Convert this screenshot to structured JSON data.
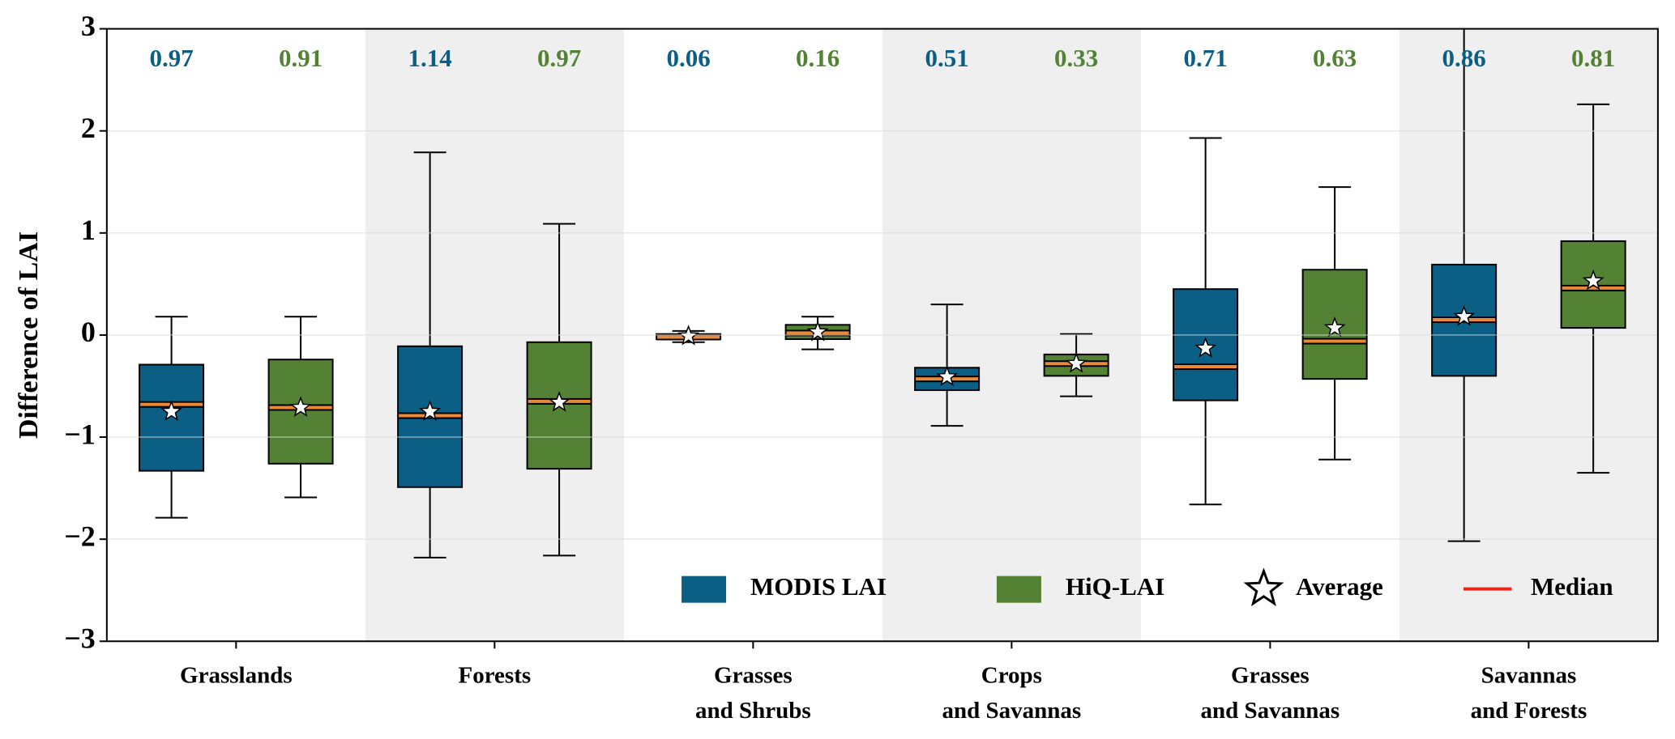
{
  "chart_data": {
    "type": "box",
    "y_label": "Difference of LAI",
    "categories": [
      [
        "Grasslands"
      ],
      [
        "Forests"
      ],
      [
        "Grasses",
        "and Shrubs"
      ],
      [
        "Crops",
        "and Savannas"
      ],
      [
        "Grasses",
        "and Savannas"
      ],
      [
        "Savannas",
        "and Forests"
      ]
    ],
    "ylim": [
      -3,
      3
    ],
    "yticks": [
      {
        "value": -3,
        "label": "−3"
      },
      {
        "value": -2,
        "label": "−2"
      },
      {
        "value": -1,
        "label": "−1"
      },
      0,
      1,
      2,
      3
    ],
    "grid": true,
    "alternate_shading": true,
    "mean_label": "Average",
    "median_label": "Median",
    "median_color": "#e8893c",
    "median_legend_color": "#e8261b",
    "series": [
      {
        "name": "MODIS LAI",
        "color": "#0b5f85",
        "whisker_low": [
          -1.79,
          -2.18,
          -0.07,
          -0.89,
          -1.66,
          -2.02
        ],
        "q1": [
          -1.33,
          -1.49,
          -0.04,
          -0.54,
          -0.64,
          -0.4
        ],
        "median": [
          -0.68,
          -0.79,
          -0.02,
          -0.43,
          -0.31,
          0.15
        ],
        "q3": [
          -0.29,
          -0.11,
          0.01,
          -0.32,
          0.45,
          0.69
        ],
        "whisker_high": [
          0.18,
          1.79,
          0.04,
          0.3,
          1.93,
          3.2
        ],
        "mean": [
          -0.75,
          -0.75,
          -0.01,
          -0.41,
          -0.13,
          0.18
        ],
        "annotations": [
          0.97,
          1.14,
          0.06,
          0.51,
          0.71,
          0.86
        ]
      },
      {
        "name": "HiQ-LAI",
        "color": "#548235",
        "whisker_low": [
          -1.59,
          -2.16,
          -0.14,
          -0.6,
          -1.22,
          -1.35
        ],
        "q1": [
          -1.26,
          -1.31,
          -0.04,
          -0.4,
          -0.43,
          0.07
        ],
        "median": [
          -0.71,
          -0.65,
          0.02,
          -0.28,
          -0.06,
          0.46
        ],
        "q3": [
          -0.24,
          -0.07,
          0.1,
          -0.19,
          0.64,
          0.92
        ],
        "whisker_high": [
          0.18,
          1.09,
          0.18,
          0.01,
          1.45,
          2.26
        ],
        "mean": [
          -0.71,
          -0.66,
          0.03,
          -0.28,
          0.07,
          0.53
        ],
        "annotations": [
          0.91,
          0.97,
          0.16,
          0.33,
          0.63,
          0.81
        ]
      }
    ]
  }
}
